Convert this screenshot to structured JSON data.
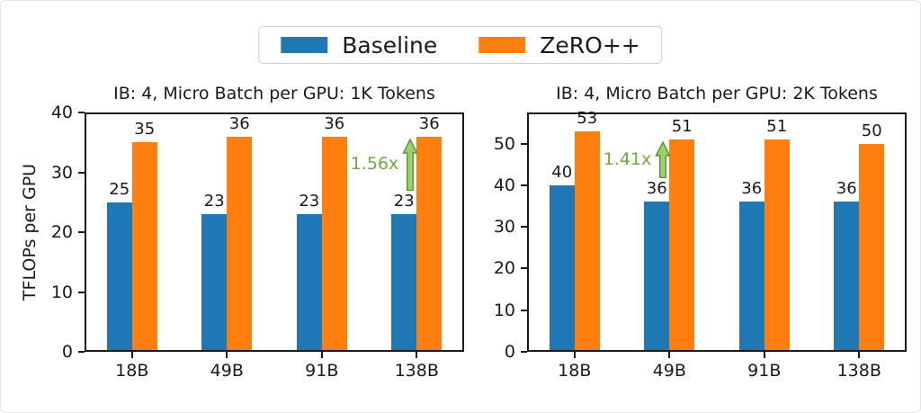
{
  "legend": {
    "items": [
      {
        "label": "Baseline",
        "color": "#1f77b4"
      },
      {
        "label": "ZeRO++",
        "color": "#ff7f0e"
      }
    ],
    "position": "top-center",
    "shared": true
  },
  "colors": {
    "baseline_blue": "#1f77b4",
    "zeropp_orange": "#ff7f0e",
    "annotation_text_green": "#71a83b",
    "arrow_fill_green": "#9fd06f",
    "arrow_stroke_green": "#5e9732",
    "axis_black": "#1a1a1a"
  },
  "chart_data": [
    {
      "type": "bar",
      "title": "IB: 4, Micro Batch per GPU: 1K Tokens",
      "ylabel": "TFLOPs per GPU",
      "xlabel": "",
      "categories": [
        "18B",
        "49B",
        "91B",
        "138B"
      ],
      "series": [
        {
          "name": "Baseline",
          "color": "#1f77b4",
          "values": [
            25,
            23,
            23,
            23
          ]
        },
        {
          "name": "ZeRO++",
          "color": "#ff7f0e",
          "values": [
            35,
            36,
            36,
            36
          ]
        }
      ],
      "ylim": [
        0,
        40
      ],
      "yticks": [
        0,
        10,
        20,
        30,
        40
      ],
      "grid": false,
      "bar_value_labels": true,
      "annotation": {
        "text": "1.56x",
        "category": "138B",
        "from_value": 23,
        "to_value": 36
      }
    },
    {
      "type": "bar",
      "title": "IB: 4, Micro Batch per GPU: 2K Tokens",
      "ylabel": "",
      "xlabel": "",
      "categories": [
        "18B",
        "49B",
        "91B",
        "138B"
      ],
      "series": [
        {
          "name": "Baseline",
          "color": "#1f77b4",
          "values": [
            40,
            36,
            36,
            36
          ]
        },
        {
          "name": "ZeRO++",
          "color": "#ff7f0e",
          "values": [
            53,
            51,
            51,
            50
          ]
        }
      ],
      "ylim": [
        0,
        57.5
      ],
      "yticks": [
        0,
        10,
        20,
        30,
        40,
        50
      ],
      "grid": false,
      "bar_value_labels": true,
      "annotation": {
        "text": "1.41x",
        "category": "49B",
        "from_value": 36,
        "to_value": 51
      }
    }
  ]
}
